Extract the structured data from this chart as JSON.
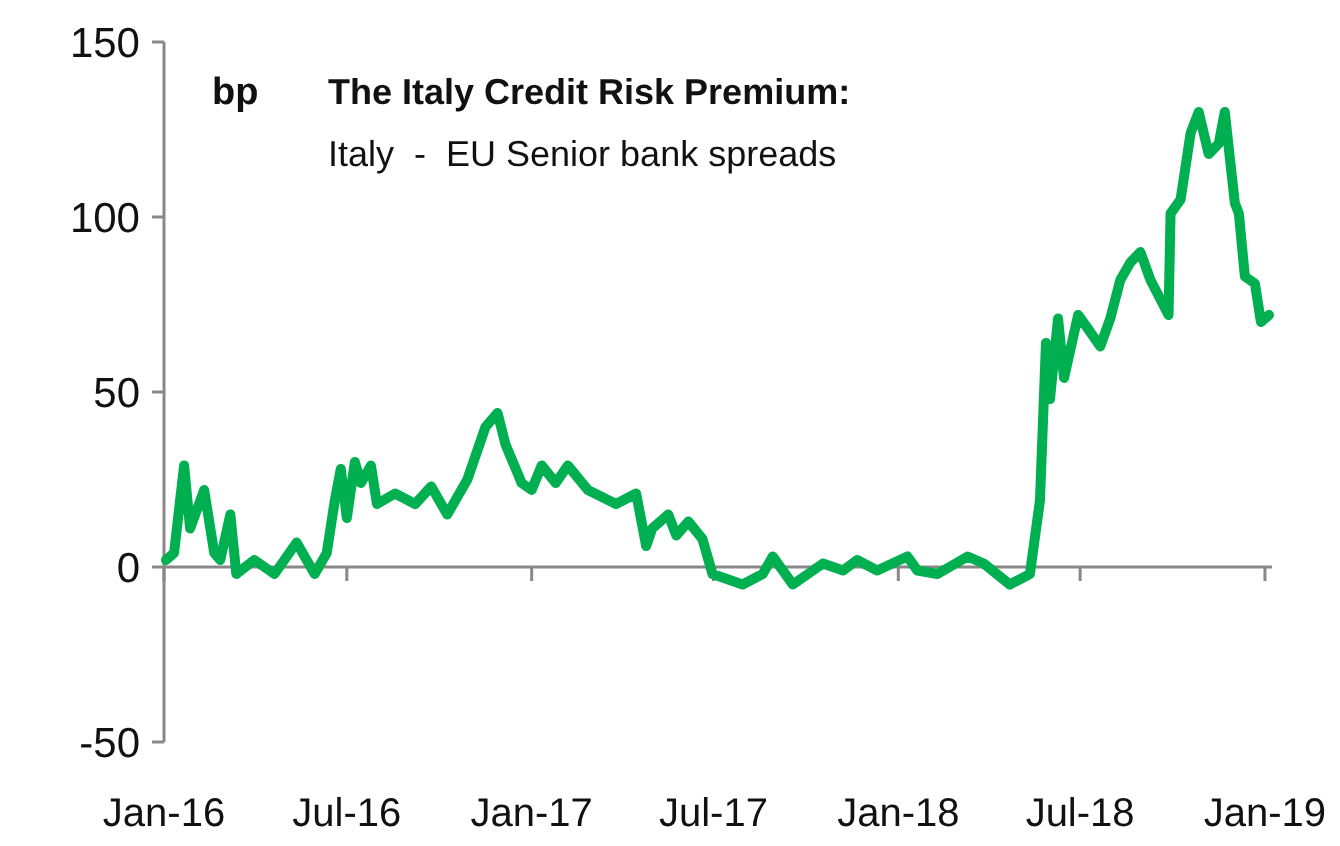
{
  "chart_data": {
    "type": "line",
    "title": "The Italy Credit Risk Premium:",
    "subtitle": "Italy  -  EU Senior bank spreads",
    "ylabel": "bp",
    "x": [
      "2016-01-03",
      "2016-01-11",
      "2016-01-21",
      "2016-01-27",
      "2016-02-10",
      "2016-02-20",
      "2016-02-26",
      "2016-03-07",
      "2016-03-13",
      "2016-03-31",
      "2016-04-20",
      "2016-05-12",
      "2016-05-30",
      "2016-06-11",
      "2016-06-19",
      "2016-06-25",
      "2016-07-01",
      "2016-07-09",
      "2016-07-15",
      "2016-07-25",
      "2016-07-31",
      "2016-08-18",
      "2016-09-07",
      "2016-09-23",
      "2016-10-09",
      "2016-10-29",
      "2016-11-16",
      "2016-11-28",
      "2016-12-06",
      "2016-12-22",
      "2017-01-01",
      "2017-01-11",
      "2017-01-25",
      "2017-02-06",
      "2017-02-26",
      "2017-03-26",
      "2017-04-15",
      "2017-04-25",
      "2017-05-01",
      "2017-05-17",
      "2017-05-25",
      "2017-06-06",
      "2017-06-20",
      "2017-06-30",
      "2017-07-30",
      "2017-08-19",
      "2017-08-29",
      "2017-09-18",
      "2017-10-18",
      "2017-11-07",
      "2017-11-21",
      "2017-12-11",
      "2018-01-10",
      "2018-01-20",
      "2018-02-09",
      "2018-03-11",
      "2018-03-27",
      "2018-04-22",
      "2018-05-12",
      "2018-05-22",
      "2018-05-28",
      "2018-06-01",
      "2018-06-09",
      "2018-06-15",
      "2018-06-29",
      "2018-07-09",
      "2018-07-21",
      "2018-07-31",
      "2018-08-10",
      "2018-08-20",
      "2018-08-30",
      "2018-09-09",
      "2018-09-27",
      "2018-09-29",
      "2018-10-09",
      "2018-10-19",
      "2018-10-27",
      "2018-11-06",
      "2018-11-16",
      "2018-11-22",
      "2018-12-02",
      "2018-12-06",
      "2018-12-12",
      "2018-12-22",
      "2018-12-28",
      "2019-01-05"
    ],
    "series": [
      {
        "color": "#00b050",
        "values": [
          2,
          4,
          29,
          11,
          22,
          4,
          2,
          15,
          -2,
          2,
          -2,
          7,
          -2,
          4,
          19,
          28,
          14,
          30,
          24,
          29,
          18,
          21,
          18,
          23,
          15,
          25,
          40,
          44,
          35,
          24,
          22,
          29,
          24,
          29,
          22,
          18,
          21,
          6,
          11,
          15,
          9,
          13,
          8,
          -2,
          -5,
          -2,
          3,
          -5,
          1,
          -1,
          2,
          -1,
          3,
          -1,
          -2,
          3,
          1,
          -5,
          -2,
          19,
          64,
          48,
          71,
          54,
          72,
          68,
          63,
          71,
          82,
          87,
          90,
          82,
          72,
          101,
          105,
          124,
          130,
          118,
          121,
          130,
          104,
          101,
          83,
          81,
          70,
          72
        ]
      }
    ],
    "xlim": [
      "2016-01-01",
      "2019-01-08"
    ],
    "xticks": [
      {
        "value": "2016-01-01",
        "label": "Jan-16"
      },
      {
        "value": "2016-07-01",
        "label": "Jul-16"
      },
      {
        "value": "2017-01-01",
        "label": "Jan-17"
      },
      {
        "value": "2017-07-01",
        "label": "Jul-17"
      },
      {
        "value": "2018-01-01",
        "label": "Jan-18"
      },
      {
        "value": "2018-07-01",
        "label": "Jul-18"
      },
      {
        "value": "2019-01-01",
        "label": "Jan-19"
      }
    ],
    "ylim": [
      -50,
      150
    ],
    "yticks": [
      -50,
      0,
      50,
      100,
      150
    ],
    "marker": "none",
    "line_style": "solid"
  }
}
